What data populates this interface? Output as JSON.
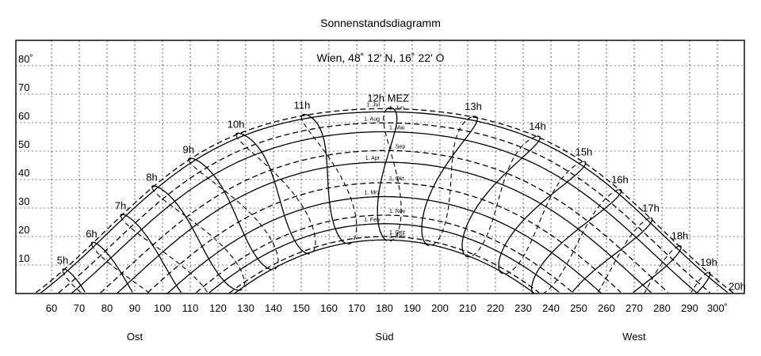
{
  "title": "Sonnenstandsdiagramm",
  "subtitle": "Wien, 48˚ 12' N, 16˚ 22' O",
  "direction_labels": [
    {
      "text": "Ost",
      "az": 90
    },
    {
      "text": "Süd",
      "az": 180
    },
    {
      "text": "West",
      "az": 270
    }
  ],
  "chart_data": {
    "type": "line",
    "title": "Sonnenstandsdiagramm",
    "subtitle": "Wien, 48˚ 12' N, 16˚ 22' O",
    "xlim": [
      50,
      310
    ],
    "ylim": [
      0,
      87
    ],
    "x_ticks": [
      60,
      70,
      80,
      90,
      100,
      110,
      120,
      130,
      140,
      150,
      160,
      170,
      180,
      190,
      200,
      210,
      220,
      230,
      240,
      250,
      260,
      270,
      280,
      290,
      300
    ],
    "x_tick_labels": [
      "60",
      "70",
      "80",
      "90",
      "100",
      "110",
      "120",
      "130",
      "140",
      "150",
      "160",
      "170",
      "180",
      "190",
      "200",
      "210",
      "220",
      "230",
      "240",
      "250",
      "260",
      "270",
      "280",
      "290",
      "300˚"
    ],
    "y_ticks": [
      10,
      20,
      30,
      40,
      50,
      60,
      70,
      80
    ],
    "y_tick_labels": [
      "10",
      "20",
      "30",
      "40",
      "50",
      "60",
      "70",
      "80˚"
    ],
    "grid": true,
    "location": {
      "latitude": 48.2,
      "longitude": 16.367
    },
    "date_curves": [
      {
        "label": "1. Jan",
        "declination": -23.0,
        "style": "solid"
      },
      {
        "label": "1. Feb",
        "declination": -17.3,
        "style": "solid"
      },
      {
        "label": "1. Mrz",
        "declination": -7.8,
        "style": "solid"
      },
      {
        "label": "1. Apr",
        "declination": 4.3,
        "style": "solid"
      },
      {
        "label": "1. Mai",
        "declination": 15.0,
        "style": "solid"
      },
      {
        "label": "1. Jun",
        "declination": 22.0,
        "style": "solid"
      },
      {
        "label": "1. Jul",
        "declination": 23.1,
        "style": "dashed"
      },
      {
        "label": "1. Aug",
        "declination": 18.1,
        "style": "dashed"
      },
      {
        "label": "1. Sep",
        "declination": 8.4,
        "style": "dashed"
      },
      {
        "label": "1. Okt",
        "declination": -2.9,
        "style": "dashed"
      },
      {
        "label": "1. Nov",
        "declination": -14.3,
        "style": "dashed"
      },
      {
        "label": "1. Dez",
        "declination": -21.8,
        "style": "dashed"
      }
    ],
    "hour_curves": [
      {
        "label": "5h",
        "hour": 5
      },
      {
        "label": "6h",
        "hour": 6
      },
      {
        "label": "7h",
        "hour": 7
      },
      {
        "label": "8h",
        "hour": 8
      },
      {
        "label": "9h",
        "hour": 9
      },
      {
        "label": "10h",
        "hour": 10
      },
      {
        "label": "11h",
        "hour": 11
      },
      {
        "label": "12h MEZ",
        "hour": 12
      },
      {
        "label": "13h",
        "hour": 13
      },
      {
        "label": "14h",
        "hour": 14
      },
      {
        "label": "15h",
        "hour": 15
      },
      {
        "label": "16h",
        "hour": 16
      },
      {
        "label": "17h",
        "hour": 17
      },
      {
        "label": "18h",
        "hour": 18
      },
      {
        "label": "19h",
        "hour": 19
      },
      {
        "label": "20h",
        "hour": 20
      }
    ]
  }
}
